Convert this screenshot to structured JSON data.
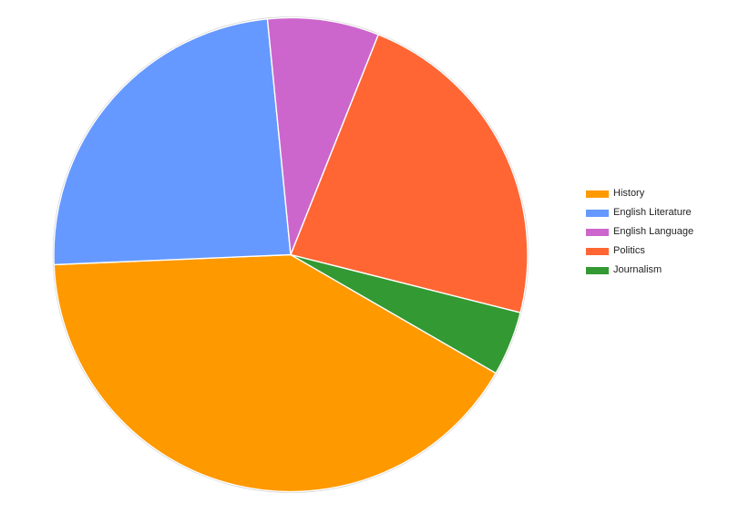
{
  "window": {
    "background_color": "#ffffff"
  },
  "chart_data": {
    "type": "pie",
    "title": "",
    "legend_position": "right",
    "direction": "clockwise",
    "start_angle_deg": 120,
    "units": "percent",
    "series": [
      {
        "name": "History",
        "value": 41.0,
        "color": "#ff9900"
      },
      {
        "name": "English Literature",
        "value": 24.1,
        "color": "#6699ff"
      },
      {
        "name": "English Language",
        "value": 7.6,
        "color": "#cc66cc"
      },
      {
        "name": "Politics",
        "value": 22.9,
        "color": "#ff6633"
      },
      {
        "name": "Journalism",
        "value": 4.4,
        "color": "#339933"
      }
    ],
    "slice_stroke_color": "#ffffff",
    "rim_color": "#cccccc",
    "legend_text_color": "#222222"
  }
}
